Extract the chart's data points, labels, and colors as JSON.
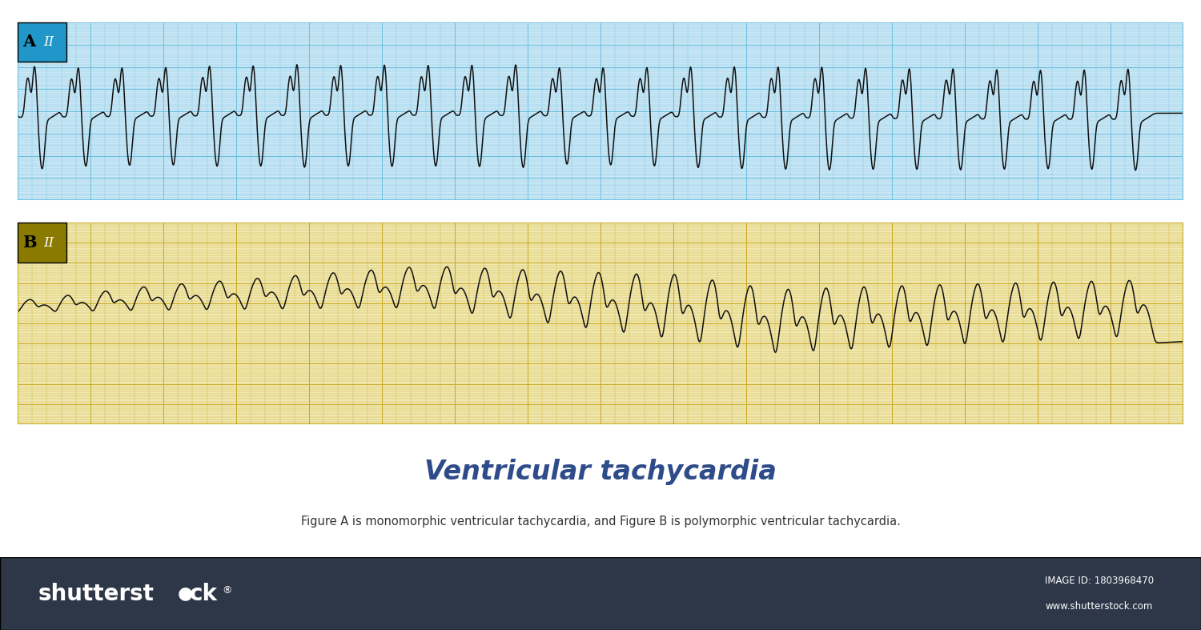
{
  "title": "Ventricular tachycardia",
  "subtitle": "Figure A is monomorphic ventricular tachycardia, and Figure B is polymorphic ventricular tachycardia.",
  "title_color": "#2e4b8a",
  "subtitle_color": "#333333",
  "label_A": "A",
  "label_B": "B",
  "lead_label": "II",
  "bg_color_A": "#cce8f5",
  "bg_color_B": "#f0e8b0",
  "grid_color_A": "#6bbfe0",
  "grid_color_B": "#c8a820",
  "label_bg_A": "#2196c8",
  "label_bg_B": "#8b7a00",
  "ecg_color": "#111111",
  "bottom_bar_color": "#2d3748",
  "white_bg": "#ffffff",
  "panel_A_ylim": [
    -2.2,
    2.2
  ],
  "panel_B_ylim": [
    -2.5,
    2.5
  ]
}
